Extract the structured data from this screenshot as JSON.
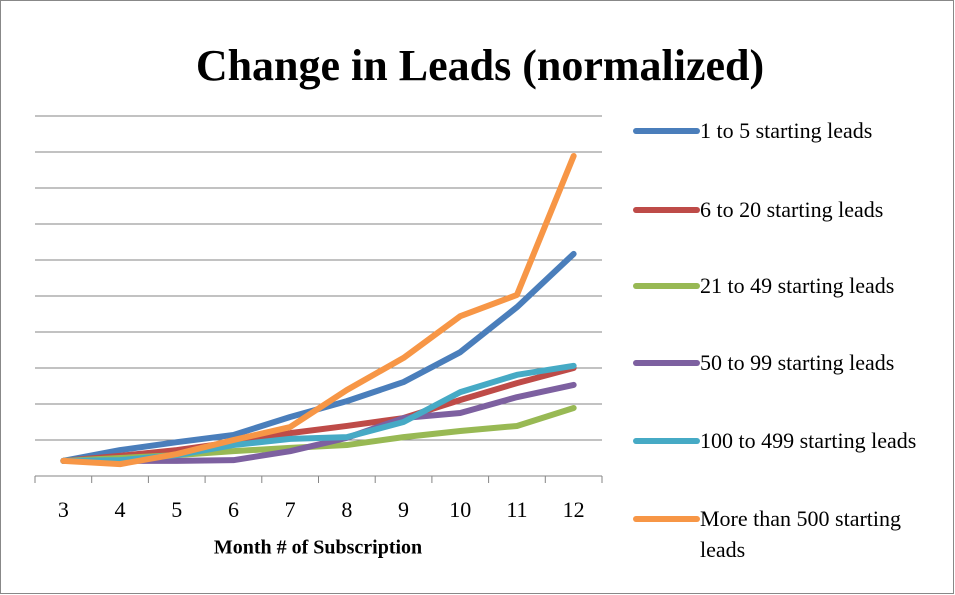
{
  "chart_data": {
    "type": "line",
    "title": "Change in Leads (normalized)",
    "x_label": "Month # of Subscription",
    "categories": [
      "3",
      "4",
      "5",
      "6",
      "7",
      "8",
      "9",
      "10",
      "11",
      "12"
    ],
    "series": [
      {
        "name": "1 to 5 starting leads",
        "color": "#4a7ebb",
        "values": [
          0.42,
          0.72,
          0.94,
          1.14,
          1.64,
          2.08,
          2.61,
          3.44,
          4.69,
          6.17
        ]
      },
      {
        "name": "6 to 20 starting leads",
        "color": "#be4b48",
        "values": [
          0.42,
          0.56,
          0.72,
          0.94,
          1.19,
          1.39,
          1.61,
          2.11,
          2.58,
          3.0
        ]
      },
      {
        "name": "21 to 49 starting leads",
        "color": "#98b954",
        "values": [
          0.42,
          0.5,
          0.58,
          0.69,
          0.78,
          0.86,
          1.08,
          1.25,
          1.39,
          1.89
        ]
      },
      {
        "name": "50 to 99 starting leads",
        "color": "#7d60a0",
        "values": [
          0.42,
          0.42,
          0.42,
          0.44,
          0.69,
          1.06,
          1.61,
          1.75,
          2.19,
          2.53
        ]
      },
      {
        "name": "100 to 499 starting leads",
        "color": "#46aac5",
        "values": [
          0.42,
          0.44,
          0.58,
          0.86,
          1.03,
          1.08,
          1.5,
          2.33,
          2.81,
          3.06
        ]
      },
      {
        "name": "More than 500 starting leads",
        "color": "#f79646",
        "values": [
          0.42,
          0.33,
          0.61,
          1.0,
          1.36,
          2.39,
          3.28,
          4.44,
          5.03,
          8.89
        ]
      }
    ],
    "ylim": [
      0,
      10
    ],
    "yticks": [
      1,
      2,
      3,
      4,
      5,
      6,
      7,
      8,
      9,
      10
    ],
    "grid": true,
    "ytick_labels": false,
    "legend": "right"
  }
}
